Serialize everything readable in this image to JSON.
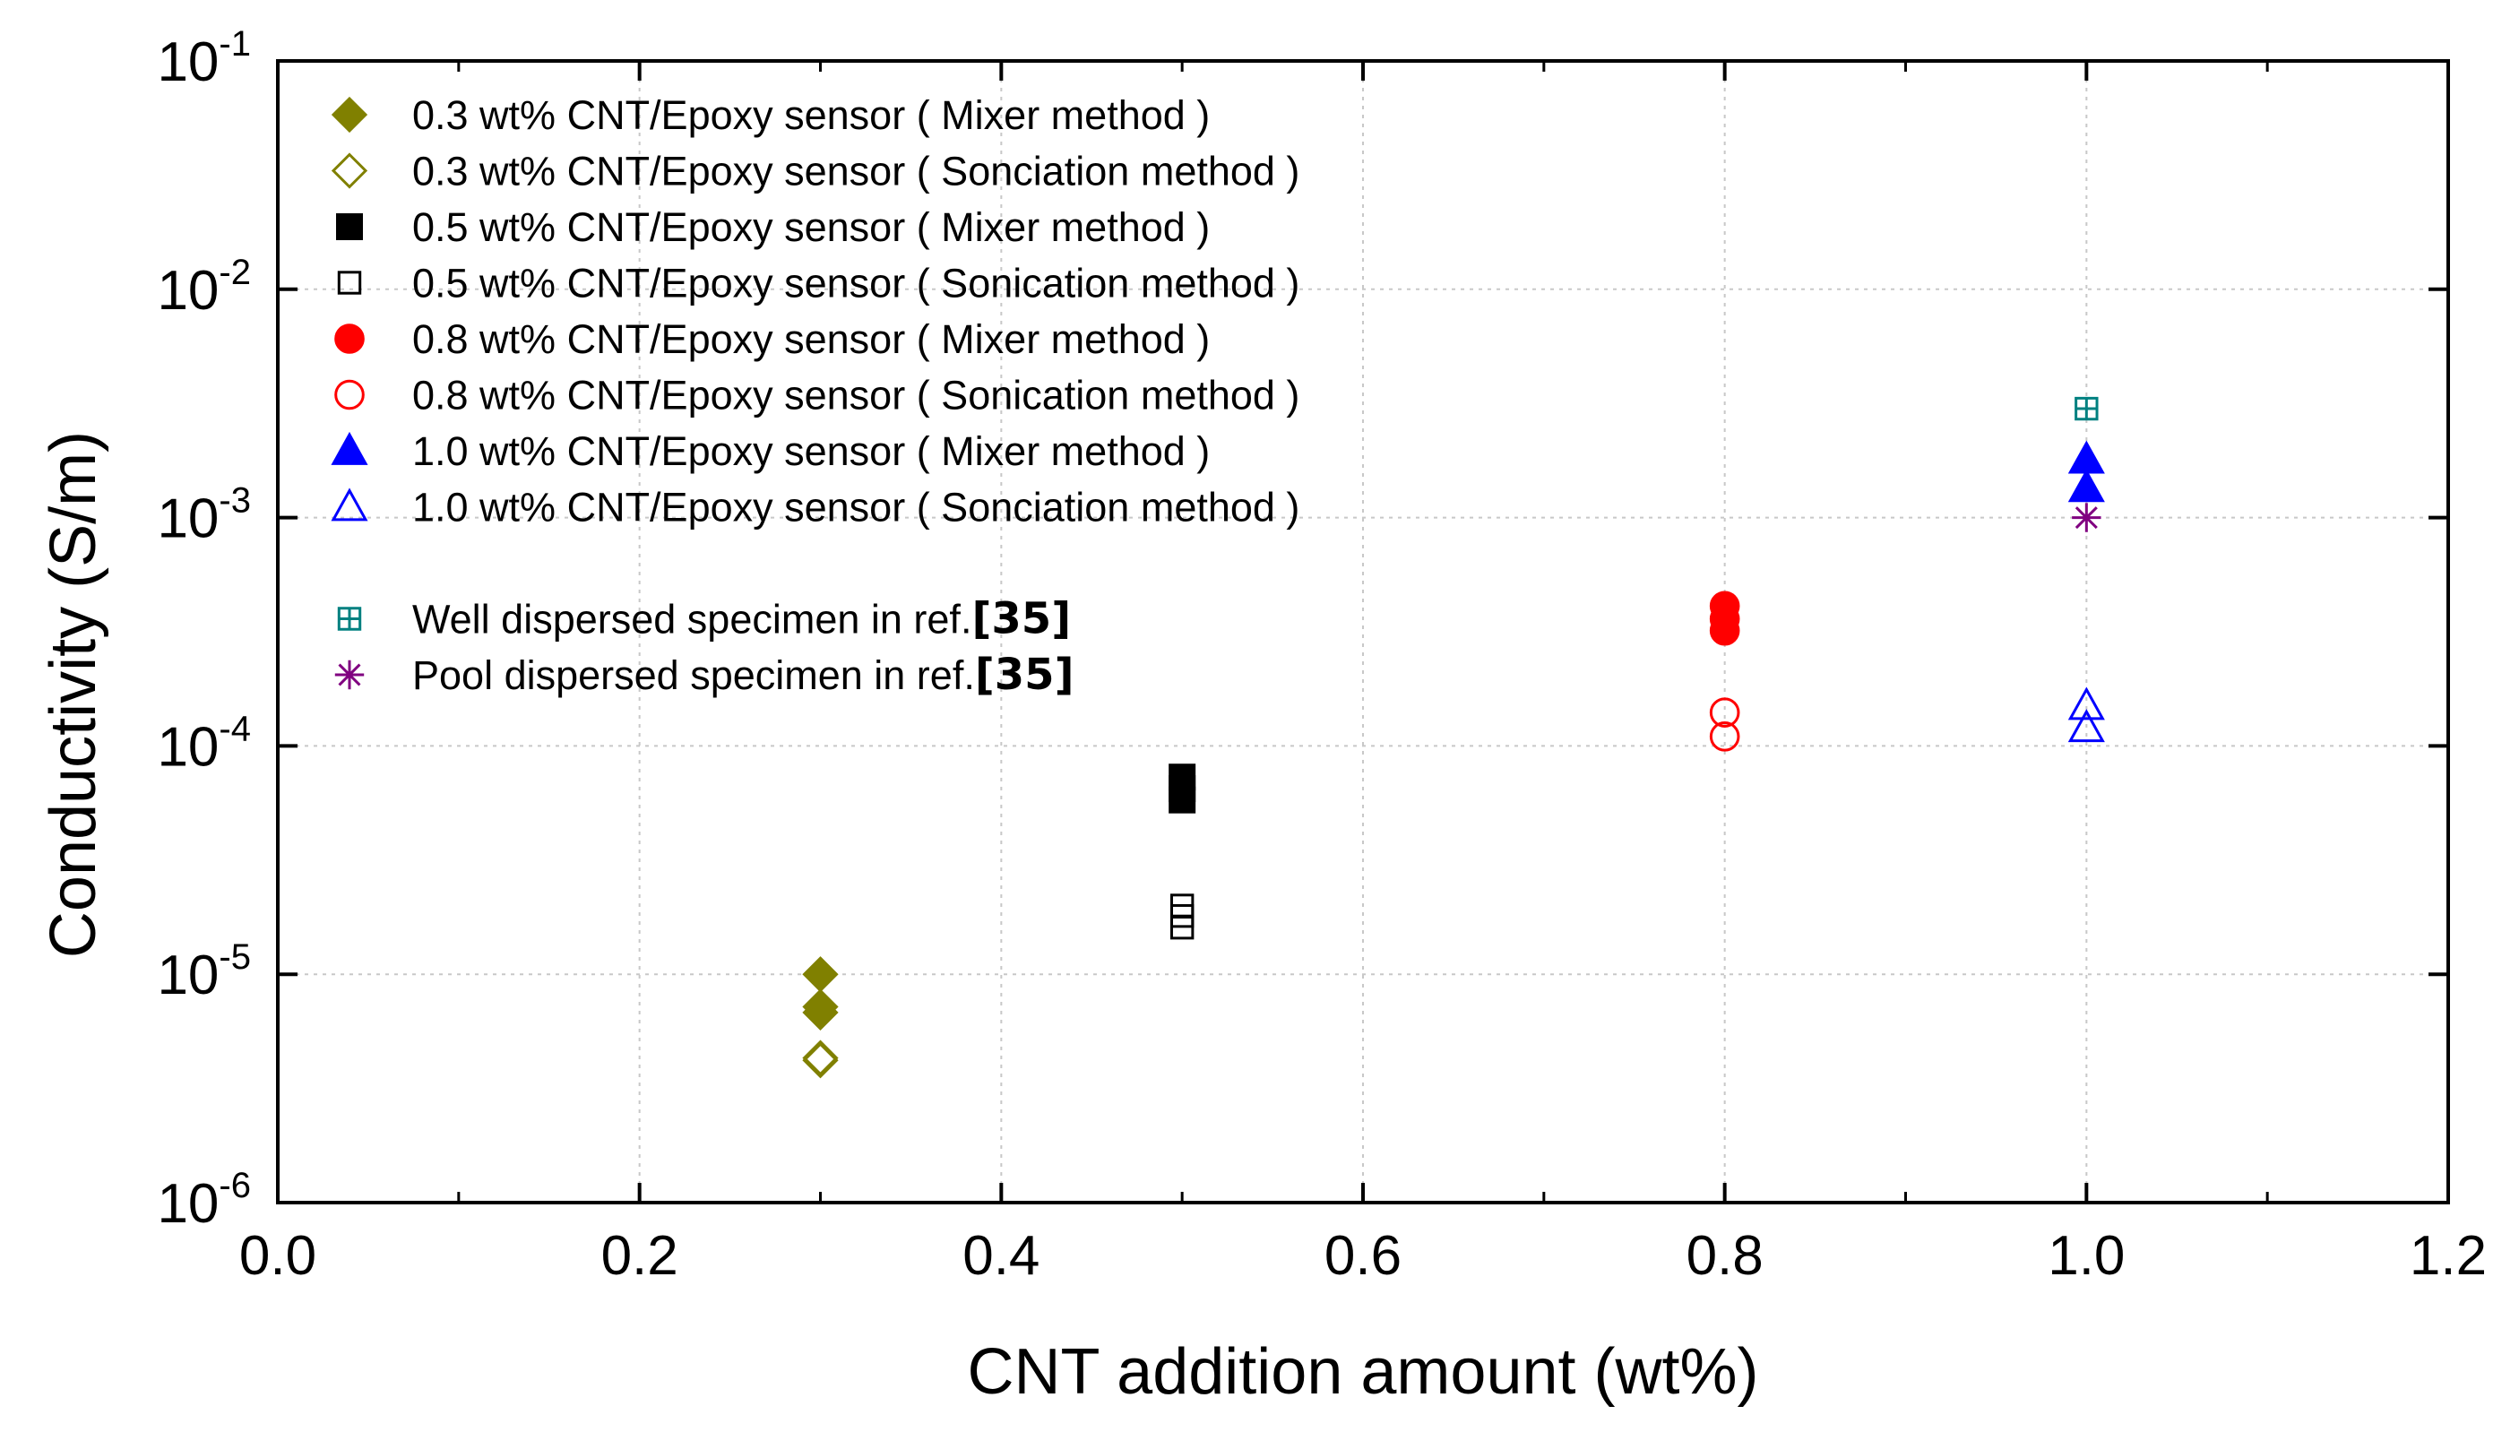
{
  "chart_data": {
    "type": "scatter",
    "title": "",
    "xlabel": "CNT addition amount (wt%)",
    "ylabel": "Conductivity (S/m)",
    "xlim": [
      0.0,
      1.2
    ],
    "ylim": [
      1e-06,
      0.1
    ],
    "yscale": "log",
    "grid": true,
    "legend_position": "top-left",
    "x_ticks": [
      "0.0",
      "0.2",
      "0.4",
      "0.6",
      "0.8",
      "1.0",
      "1.2"
    ],
    "y_ticks": [
      {
        "base": "10",
        "exp": "-1"
      },
      {
        "base": "10",
        "exp": "-2"
      },
      {
        "base": "10",
        "exp": "-3"
      },
      {
        "base": "10",
        "exp": "-4"
      },
      {
        "base": "10",
        "exp": "-5"
      },
      {
        "base": "10",
        "exp": "-6"
      }
    ],
    "series": [
      {
        "name": "0.3 wt% CNT/Epoxy sensor ( Mixer method )",
        "marker": "diamond-filled",
        "color": "#808000",
        "x": [
          0.3,
          0.3,
          0.3
        ],
        "y": [
          1e-05,
          7.2e-06,
          6.8e-06
        ]
      },
      {
        "name": "0.3 wt% CNT/Epoxy sensor ( Sonciation method )",
        "marker": "diamond-open",
        "color": "#808000",
        "x": [
          0.3,
          0.3
        ],
        "y": [
          4.3e-06,
          4.2e-06
        ]
      },
      {
        "name": "0.5 wt% CNT/Epoxy sensor ( Mixer method )",
        "marker": "square-filled",
        "color": "#000000",
        "x": [
          0.5,
          0.5,
          0.5
        ],
        "y": [
          7.3e-05,
          6.5e-05,
          5.8e-05
        ]
      },
      {
        "name": "0.5 wt% CNT/Epoxy sensor ( Sonication method )",
        "marker": "square-open",
        "color": "#000000",
        "x": [
          0.5,
          0.5,
          0.5
        ],
        "y": [
          2e-05,
          1.8e-05,
          1.6e-05
        ]
      },
      {
        "name": "0.8 wt% CNT/Epoxy sensor ( Mixer method )",
        "marker": "circle-filled",
        "color": "#ff0000",
        "x": [
          0.8,
          0.8,
          0.8
        ],
        "y": [
          0.00041,
          0.00036,
          0.00032
        ]
      },
      {
        "name": "0.8 wt% CNT/Epoxy sensor ( Sonication method )",
        "marker": "circle-open",
        "color": "#ff0000",
        "x": [
          0.8,
          0.8
        ],
        "y": [
          0.00014,
          0.00011
        ]
      },
      {
        "name": "1.0 wt% CNT/Epoxy sensor ( Mixer method )",
        "marker": "triangle-filled",
        "color": "#0000ff",
        "x": [
          1.0,
          1.0
        ],
        "y": [
          0.0018,
          0.00135
        ]
      },
      {
        "name": "1.0 wt% CNT/Epoxy sensor ( Sonciation method )",
        "marker": "triangle-open",
        "color": "#0000ff",
        "x": [
          1.0,
          1.0
        ],
        "y": [
          0.00015,
          0.00012
        ]
      },
      {
        "name": "Well dispersed specimen in ref.",
        "ref": "[35]",
        "marker": "square-plus",
        "color": "#008080",
        "x": [
          1.0
        ],
        "y": [
          0.003
        ]
      },
      {
        "name": "Pool dispersed specimen in ref.",
        "ref": "[35]",
        "marker": "asterisk",
        "color": "#800080",
        "x": [
          1.0
        ],
        "y": [
          0.001
        ]
      }
    ]
  }
}
